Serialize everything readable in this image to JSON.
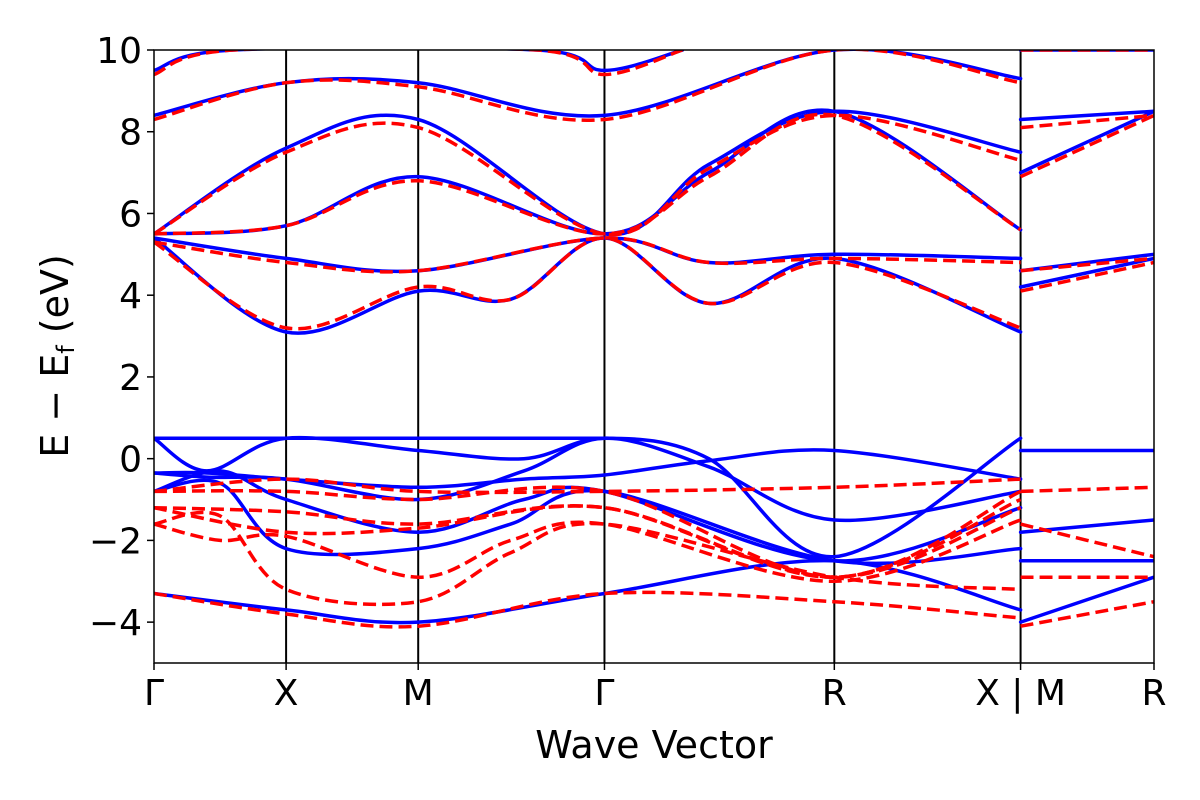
{
  "chart_data": {
    "type": "line",
    "title": "",
    "xlabel": "Wave Vector",
    "ylabel": "E − E_f (eV)",
    "ylabel_parts": {
      "main": "E − E",
      "sub": "f",
      "unit": " (eV)"
    },
    "ylim": [
      -5,
      10
    ],
    "yticks": [
      10,
      8,
      6,
      4,
      2,
      0,
      -2,
      -4
    ],
    "ytick_labels": [
      "10",
      "8",
      "6",
      "4",
      "2",
      "0",
      "−2",
      "−4"
    ],
    "grid": false,
    "legend": "none",
    "kpath": [
      {
        "label": "Γ",
        "k": 0
      },
      {
        "label": "X",
        "k": 1
      },
      {
        "label": "M",
        "k": 2
      },
      {
        "label": "Γ",
        "k": 3.41
      },
      {
        "label": "R",
        "k": 5.15
      },
      {
        "label": "X | M",
        "k": 6.56
      },
      {
        "label": "R",
        "k": 7.57
      }
    ],
    "segment_breaks": [
      6.56
    ],
    "series": [
      {
        "style": "solid",
        "color": "#0000ff",
        "bands": [
          [
            [
              0,
              -3.3
            ],
            [
              1,
              -3.7
            ],
            [
              2,
              -4.0
            ],
            [
              3.41,
              -3.3
            ],
            [
              5.15,
              -2.5
            ],
            [
              6.56,
              -3.7
            ]
          ],
          [
            [
              0,
              -0.8
            ],
            [
              0.5,
              -0.6
            ],
            [
              1,
              -2.2
            ],
            [
              2,
              -2.2
            ],
            [
              2.7,
              -1.6
            ],
            [
              3.41,
              -0.8
            ],
            [
              5.15,
              -2.5
            ],
            [
              6.56,
              -2.2
            ]
          ],
          [
            [
              0,
              -0.8
            ],
            [
              0.5,
              -0.3
            ],
            [
              1,
              -1.0
            ],
            [
              2,
              -1.8
            ],
            [
              2.8,
              -1.0
            ],
            [
              3.41,
              -0.8
            ],
            [
              5.15,
              -2.5
            ],
            [
              6.56,
              -1.2
            ]
          ],
          [
            [
              0,
              -0.35
            ],
            [
              0.4,
              -0.35
            ],
            [
              1,
              -0.5
            ],
            [
              2,
              -0.7
            ],
            [
              2.8,
              -0.5
            ],
            [
              3.41,
              -0.4
            ],
            [
              4.2,
              -0.05
            ],
            [
              5.15,
              0.2
            ],
            [
              6.56,
              -0.5
            ]
          ],
          [
            [
              0,
              -0.35
            ],
            [
              0.4,
              -0.45
            ],
            [
              1,
              -0.5
            ],
            [
              2,
              -1.0
            ],
            [
              2.8,
              -0.3
            ],
            [
              3.41,
              0.5
            ],
            [
              4.2,
              -0.2
            ],
            [
              5.15,
              -1.5
            ],
            [
              6.56,
              -0.8
            ]
          ],
          [
            [
              0,
              0.5
            ],
            [
              0.4,
              -0.3
            ],
            [
              1,
              0.5
            ],
            [
              2,
              0.2
            ],
            [
              2.8,
              0.0
            ],
            [
              3.41,
              0.5
            ],
            [
              4.2,
              0.0
            ],
            [
              5.15,
              -2.4
            ],
            [
              6.56,
              0.5
            ]
          ],
          [
            [
              0,
              0.5
            ],
            [
              1,
              0.5
            ],
            [
              2,
              0.5
            ],
            [
              3.41,
              0.5
            ]
          ],
          [
            [
              0,
              5.4
            ],
            [
              1,
              3.1
            ],
            [
              2,
              4.1
            ],
            [
              2.7,
              3.9
            ],
            [
              3.41,
              5.4
            ],
            [
              4.2,
              3.8
            ],
            [
              5.15,
              4.9
            ],
            [
              6.56,
              3.1
            ]
          ],
          [
            [
              0,
              5.4
            ],
            [
              1,
              4.9
            ],
            [
              2,
              4.6
            ],
            [
              3.41,
              5.4
            ],
            [
              4.2,
              4.8
            ],
            [
              5.15,
              5.0
            ],
            [
              6.56,
              4.9
            ]
          ],
          [
            [
              0,
              5.5
            ],
            [
              1,
              5.7
            ],
            [
              2,
              6.9
            ],
            [
              3.41,
              5.5
            ],
            [
              4.2,
              7.0
            ],
            [
              5.15,
              8.5
            ],
            [
              6.56,
              5.6
            ]
          ],
          [
            [
              0,
              5.5
            ],
            [
              1,
              7.6
            ],
            [
              2,
              8.3
            ],
            [
              3.41,
              5.5
            ],
            [
              4.2,
              7.2
            ],
            [
              5.15,
              8.5
            ],
            [
              6.56,
              7.5
            ]
          ],
          [
            [
              0,
              8.4
            ],
            [
              1,
              9.2
            ],
            [
              2,
              9.2
            ],
            [
              3.41,
              8.4
            ],
            [
              5.15,
              10.0
            ],
            [
              6.56,
              9.3
            ]
          ],
          [
            [
              0,
              9.5
            ],
            [
              0.6,
              10.0
            ],
            [
              2.9,
              10.0
            ],
            [
              3.41,
              9.5
            ],
            [
              4.0,
              10.0
            ]
          ],
          [
            [
              6.56,
              -4.0
            ],
            [
              7.57,
              -2.9
            ]
          ],
          [
            [
              6.56,
              -2.5
            ],
            [
              7.57,
              -2.5
            ]
          ],
          [
            [
              6.56,
              -1.8
            ],
            [
              7.57,
              -1.5
            ]
          ],
          [
            [
              6.56,
              0.2
            ],
            [
              7.57,
              0.2
            ]
          ],
          [
            [
              6.56,
              4.2
            ],
            [
              7.57,
              4.9
            ]
          ],
          [
            [
              6.56,
              4.6
            ],
            [
              7.57,
              5.0
            ]
          ],
          [
            [
              6.56,
              7.0
            ],
            [
              7.57,
              8.5
            ]
          ],
          [
            [
              6.56,
              8.3
            ],
            [
              7.57,
              8.5
            ]
          ],
          [
            [
              6.56,
              10.0
            ],
            [
              7.57,
              10.0
            ]
          ]
        ]
      },
      {
        "style": "dashed",
        "color": "#ff0000",
        "bands": [
          [
            [
              0,
              -3.3
            ],
            [
              1,
              -3.8
            ],
            [
              2,
              -4.1
            ],
            [
              3.41,
              -3.3
            ],
            [
              5.15,
              -3.5
            ],
            [
              6.56,
              -3.9
            ]
          ],
          [
            [
              0,
              -1.6
            ],
            [
              0.5,
              -1.4
            ],
            [
              1,
              -3.2
            ],
            [
              2,
              -3.5
            ],
            [
              2.7,
              -2.3
            ],
            [
              3.41,
              -1.6
            ],
            [
              5.15,
              -2.9
            ],
            [
              6.56,
              -3.2
            ]
          ],
          [
            [
              0,
              -1.6
            ],
            [
              0.5,
              -2.0
            ],
            [
              1,
              -1.9
            ],
            [
              2,
              -2.9
            ],
            [
              2.7,
              -2.0
            ],
            [
              3.41,
              -1.6
            ],
            [
              5.15,
              -3.0
            ],
            [
              6.56,
              -1.5
            ]
          ],
          [
            [
              0,
              -1.2
            ],
            [
              1,
              -1.8
            ],
            [
              2,
              -1.7
            ],
            [
              3.41,
              -1.2
            ],
            [
              5.15,
              -2.9
            ],
            [
              6.56,
              -1.2
            ]
          ],
          [
            [
              0,
              -1.2
            ],
            [
              1,
              -1.3
            ],
            [
              2,
              -1.6
            ],
            [
              3.41,
              -1.2
            ],
            [
              5.15,
              -2.9
            ],
            [
              6.56,
              -1.0
            ]
          ],
          [
            [
              0,
              -0.8
            ],
            [
              1,
              -0.5
            ],
            [
              2,
              -0.8
            ],
            [
              3.41,
              -0.8
            ],
            [
              5.15,
              -0.7
            ],
            [
              6.56,
              -0.5
            ]
          ],
          [
            [
              0,
              -0.8
            ],
            [
              1,
              -0.8
            ],
            [
              2,
              -1.0
            ],
            [
              3.41,
              -0.8
            ],
            [
              5.15,
              -2.9
            ],
            [
              6.56,
              -0.8
            ]
          ],
          [
            [
              0,
              5.3
            ],
            [
              1,
              3.2
            ],
            [
              2,
              4.2
            ],
            [
              2.7,
              3.9
            ],
            [
              3.41,
              5.4
            ],
            [
              4.2,
              3.8
            ],
            [
              5.15,
              4.8
            ],
            [
              6.56,
              3.2
            ]
          ],
          [
            [
              0,
              5.3
            ],
            [
              1,
              4.8
            ],
            [
              2,
              4.6
            ],
            [
              3.41,
              5.4
            ],
            [
              4.2,
              4.8
            ],
            [
              5.15,
              4.9
            ],
            [
              6.56,
              4.8
            ]
          ],
          [
            [
              0,
              5.5
            ],
            [
              1,
              5.7
            ],
            [
              2,
              6.8
            ],
            [
              3.41,
              5.5
            ],
            [
              4.2,
              6.9
            ],
            [
              5.15,
              8.4
            ],
            [
              6.56,
              5.6
            ]
          ],
          [
            [
              0,
              5.5
            ],
            [
              1,
              7.5
            ],
            [
              2,
              8.1
            ],
            [
              3.41,
              5.5
            ],
            [
              4.2,
              7.1
            ],
            [
              5.15,
              8.4
            ],
            [
              6.56,
              7.3
            ]
          ],
          [
            [
              0,
              8.3
            ],
            [
              1,
              9.2
            ],
            [
              2,
              9.1
            ],
            [
              3.41,
              8.3
            ],
            [
              5.15,
              10.0
            ],
            [
              6.56,
              9.2
            ]
          ],
          [
            [
              0,
              9.4
            ],
            [
              0.6,
              10.0
            ],
            [
              2.9,
              10.0
            ],
            [
              3.41,
              9.4
            ],
            [
              4.0,
              10.0
            ]
          ],
          [
            [
              6.56,
              -4.1
            ],
            [
              7.57,
              -3.5
            ]
          ],
          [
            [
              6.56,
              -2.9
            ],
            [
              7.57,
              -2.9
            ]
          ],
          [
            [
              6.56,
              -1.6
            ],
            [
              7.57,
              -2.4
            ]
          ],
          [
            [
              6.56,
              -0.8
            ],
            [
              7.57,
              -0.7
            ]
          ],
          [
            [
              6.56,
              4.1
            ],
            [
              7.57,
              4.8
            ]
          ],
          [
            [
              6.56,
              4.6
            ],
            [
              7.57,
              4.9
            ]
          ],
          [
            [
              6.56,
              6.9
            ],
            [
              7.57,
              8.4
            ]
          ],
          [
            [
              6.56,
              8.1
            ],
            [
              7.57,
              8.4
            ]
          ],
          [
            [
              6.56,
              10.0
            ],
            [
              7.57,
              10.0
            ]
          ]
        ]
      }
    ]
  }
}
